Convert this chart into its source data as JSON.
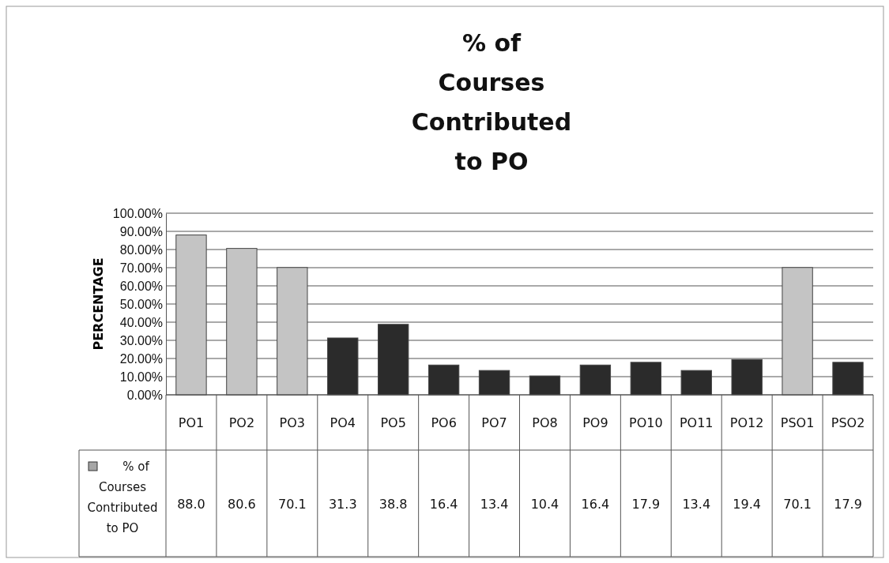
{
  "chart_data": {
    "type": "bar",
    "title": "% of Courses Contributed to PO",
    "ylabel": "PERCENTAGE",
    "categories": [
      "PO1",
      "PO2",
      "PO3",
      "PO4",
      "PO5",
      "PO6",
      "PO7",
      "PO8",
      "PO9",
      "PO10",
      "PO11",
      "PO12",
      "PSO1",
      "PSO2"
    ],
    "series": [
      {
        "name": "% of Courses Contributed to PO",
        "color": "#a6a6a6",
        "colors": [
          "#c4c4c4",
          "#c4c4c4",
          "#c4c4c4",
          "#2b2b2b",
          "#2b2b2b",
          "#2b2b2b",
          "#2b2b2b",
          "#2b2b2b",
          "#2b2b2b",
          "#2b2b2b",
          "#2b2b2b",
          "#2b2b2b",
          "#c4c4c4",
          "#2b2b2b"
        ],
        "values": [
          88.0,
          80.6,
          70.1,
          31.3,
          38.8,
          16.4,
          13.4,
          10.4,
          16.4,
          17.9,
          13.4,
          19.4,
          70.1,
          17.9
        ],
        "value_labels": [
          "88.0",
          "80.6",
          "70.1",
          "31.3",
          "38.8",
          "16.4",
          "13.4",
          "10.4",
          "16.4",
          "17.9",
          "13.4",
          "19.4",
          "70.1",
          "17.9"
        ]
      }
    ],
    "ylim": [
      0,
      100
    ],
    "yticks": [
      {
        "value": 0,
        "label": "0.00%"
      },
      {
        "value": 10,
        "label": "10.00%"
      },
      {
        "value": 20,
        "label": "20.00%"
      },
      {
        "value": 30,
        "label": "30.00%"
      },
      {
        "value": 40,
        "label": "40.00%"
      },
      {
        "value": 50,
        "label": "50.00%"
      },
      {
        "value": 60,
        "label": "60.00%"
      },
      {
        "value": 70,
        "label": "70.00%"
      },
      {
        "value": 80,
        "label": "80.00%"
      },
      {
        "value": 90,
        "label": "90.00%"
      },
      {
        "value": 100,
        "label": "100.00%"
      }
    ],
    "grid": "y",
    "legend": "bottom left"
  }
}
